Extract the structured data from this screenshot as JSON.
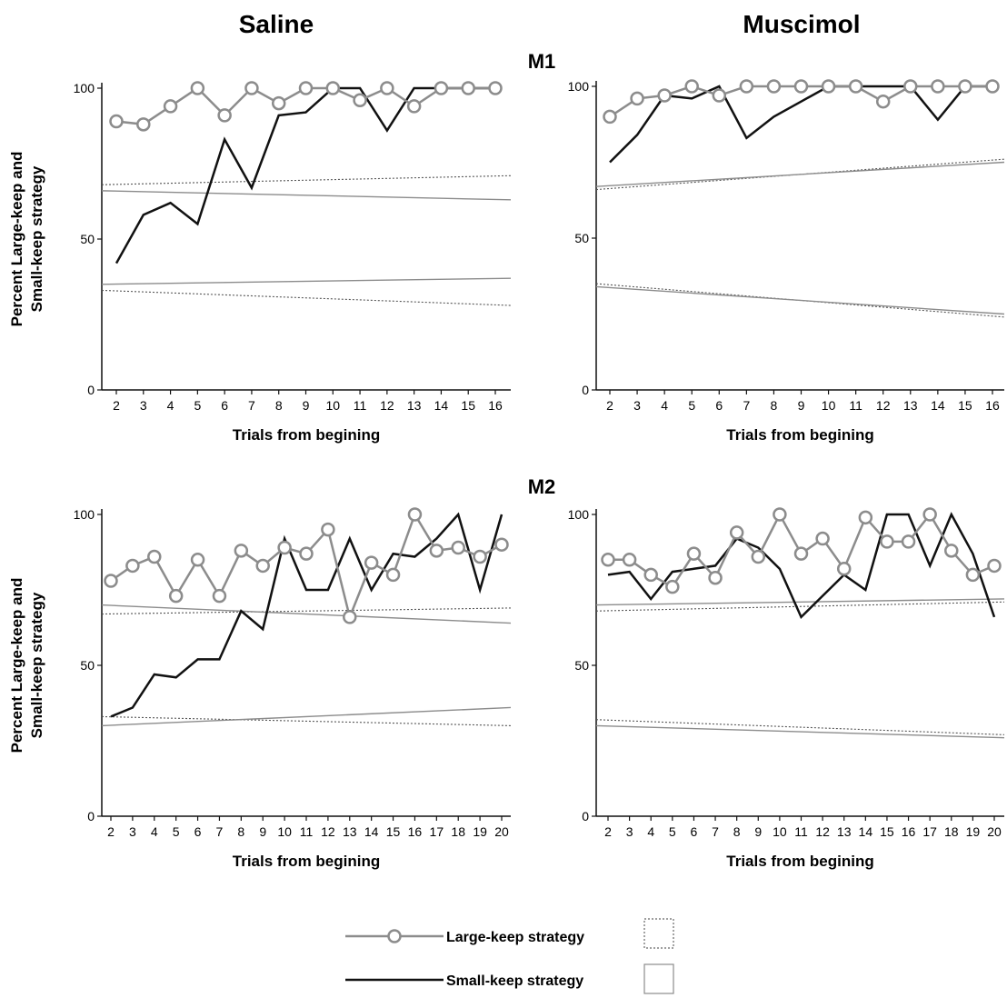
{
  "figure": {
    "column_titles": [
      "Saline",
      "Muscimol"
    ],
    "row_titles": [
      "M1",
      "M2"
    ],
    "legend": {
      "large_label": "Large-keep strategy",
      "small_label": "Small-keep strategy"
    },
    "colors": {
      "large": "#8c8c8c",
      "small": "#111111",
      "band_dotted": "#555555",
      "band_solid": "#8c8c8c",
      "axis": "#111111"
    }
  },
  "chart_data": [
    {
      "type": "line",
      "row": "M1",
      "column": "Saline",
      "xlabel": "Trials from begining",
      "ylabel": "Percent Large-keep and Small-keep strategy",
      "x": [
        2,
        3,
        4,
        5,
        6,
        7,
        8,
        9,
        10,
        11,
        12,
        13,
        14,
        15,
        16
      ],
      "ylim": [
        0,
        100
      ],
      "yticks": [
        0,
        50,
        100
      ],
      "series": [
        {
          "name": "Large-keep strategy",
          "values": [
            89,
            88,
            94,
            100,
            91,
            100,
            95,
            100,
            100,
            96,
            100,
            94,
            100,
            100,
            100
          ]
        },
        {
          "name": "Small-keep strategy",
          "values": [
            42,
            58,
            62,
            55,
            83,
            67,
            91,
            92,
            100,
            100,
            86,
            100,
            100,
            100,
            100
          ]
        }
      ],
      "bands": {
        "dotted": {
          "upper": [
            68,
            71
          ],
          "lower": [
            33,
            28
          ]
        },
        "solid": {
          "upper": [
            66,
            63
          ],
          "lower": [
            35,
            37
          ]
        }
      }
    },
    {
      "type": "line",
      "row": "M1",
      "column": "Muscimol",
      "xlabel": "Trials from begining",
      "ylabel": "",
      "x": [
        2,
        3,
        4,
        5,
        6,
        7,
        8,
        9,
        10,
        11,
        12,
        13,
        14,
        15,
        16
      ],
      "ylim": [
        0,
        100
      ],
      "yticks": [
        0,
        50,
        100
      ],
      "series": [
        {
          "name": "Large-keep strategy",
          "values": [
            90,
            96,
            97,
            100,
            97,
            100,
            100,
            100,
            100,
            100,
            95,
            100,
            100,
            100,
            100
          ]
        },
        {
          "name": "Small-keep strategy",
          "values": [
            75,
            84,
            97,
            96,
            100,
            83,
            90,
            95,
            100,
            100,
            100,
            100,
            89,
            100,
            100
          ]
        }
      ],
      "bands": {
        "dotted": {
          "upper": [
            66,
            76
          ],
          "lower": [
            35,
            24
          ]
        },
        "solid": {
          "upper": [
            67,
            75
          ],
          "lower": [
            34,
            25
          ]
        }
      }
    },
    {
      "type": "line",
      "row": "M2",
      "column": "Saline",
      "xlabel": "Trials from begining",
      "ylabel": "Percent Large-keep and Small-keep strategy",
      "x": [
        2,
        3,
        4,
        5,
        6,
        7,
        8,
        9,
        10,
        11,
        12,
        13,
        14,
        15,
        16,
        17,
        18,
        19,
        20
      ],
      "ylim": [
        0,
        100
      ],
      "yticks": [
        0,
        50,
        100
      ],
      "series": [
        {
          "name": "Large-keep strategy",
          "values": [
            78,
            83,
            86,
            73,
            85,
            73,
            88,
            83,
            89,
            87,
            95,
            66,
            84,
            80,
            100,
            88,
            89,
            86,
            90
          ]
        },
        {
          "name": "Small-keep strategy",
          "values": [
            33,
            36,
            47,
            46,
            52,
            52,
            68,
            62,
            92,
            75,
            75,
            92,
            75,
            87,
            86,
            92,
            100,
            75,
            100
          ]
        }
      ],
      "bands": {
        "dotted": {
          "upper": [
            67,
            69
          ],
          "lower": [
            33,
            30
          ]
        },
        "solid": {
          "upper": [
            70,
            64
          ],
          "lower": [
            30,
            36
          ]
        }
      }
    },
    {
      "type": "line",
      "row": "M2",
      "column": "Muscimol",
      "xlabel": "Trials from begining",
      "ylabel": "",
      "x": [
        2,
        3,
        4,
        5,
        6,
        7,
        8,
        9,
        10,
        11,
        12,
        13,
        14,
        15,
        16,
        17,
        18,
        19,
        20
      ],
      "ylim": [
        0,
        100
      ],
      "yticks": [
        0,
        50,
        100
      ],
      "series": [
        {
          "name": "Large-keep strategy",
          "values": [
            85,
            85,
            80,
            76,
            87,
            79,
            94,
            86,
            100,
            87,
            92,
            82,
            99,
            91,
            91,
            100,
            88,
            80,
            83
          ]
        },
        {
          "name": "Small-keep strategy",
          "values": [
            80,
            81,
            72,
            81,
            82,
            83,
            92,
            89,
            82,
            66,
            73,
            80,
            75,
            100,
            100,
            83,
            100,
            87,
            66
          ]
        }
      ],
      "bands": {
        "dotted": {
          "upper": [
            68,
            71
          ],
          "lower": [
            32,
            27
          ]
        },
        "solid": {
          "upper": [
            70,
            72
          ],
          "lower": [
            30,
            26
          ]
        }
      }
    }
  ]
}
